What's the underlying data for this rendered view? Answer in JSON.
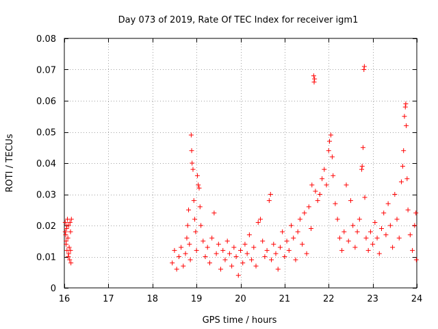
{
  "chart_data": {
    "type": "scatter",
    "title": "Day 073 of 2019, Rate Of TEC Index for receiver igm1",
    "xlabel": "GPS time / hours",
    "ylabel": "ROTI / TECUs",
    "xlim": [
      16,
      24
    ],
    "ylim": [
      0,
      0.08
    ],
    "xticks": [
      16,
      17,
      18,
      19,
      20,
      21,
      22,
      23,
      24
    ],
    "xtick_labels": [
      "16",
      "17",
      "18",
      "19",
      "20",
      "21",
      "22",
      "23",
      "24"
    ],
    "yticks": [
      0,
      0.01,
      0.02,
      0.03,
      0.04,
      0.05,
      0.06,
      0.07,
      0.08
    ],
    "ytick_labels": [
      "0",
      "0.01",
      "0.02",
      "0.03",
      "0.04",
      "0.05",
      "0.06",
      "0.07",
      "0.08"
    ],
    "grid": true,
    "marker": "+",
    "color": "#ff0000",
    "series": [
      {
        "name": "ROTI",
        "points": [
          [
            16.02,
            0.021
          ],
          [
            16.03,
            0.017
          ],
          [
            16.04,
            0.014
          ],
          [
            16.05,
            0.019
          ],
          [
            16.06,
            0.012
          ],
          [
            16.07,
            0.022
          ],
          [
            16.08,
            0.016
          ],
          [
            16.09,
            0.01
          ],
          [
            16.1,
            0.02
          ],
          [
            16.11,
            0.013
          ],
          [
            16.12,
            0.009
          ],
          [
            16.13,
            0.021
          ],
          [
            16.14,
            0.018
          ],
          [
            16.15,
            0.008
          ],
          [
            16.16,
            0.022
          ],
          [
            16.04,
            0.015
          ],
          [
            16.06,
            0.02
          ],
          [
            16.1,
            0.011
          ],
          [
            16.14,
            0.012
          ],
          [
            16.02,
            0.018
          ],
          [
            18.45,
            0.008
          ],
          [
            18.5,
            0.012
          ],
          [
            18.55,
            0.006
          ],
          [
            18.6,
            0.01
          ],
          [
            18.65,
            0.013
          ],
          [
            18.7,
            0.007
          ],
          [
            18.75,
            0.011
          ],
          [
            18.78,
            0.016
          ],
          [
            18.8,
            0.02
          ],
          [
            18.82,
            0.025
          ],
          [
            18.84,
            0.014
          ],
          [
            18.86,
            0.009
          ],
          [
            18.88,
            0.049
          ],
          [
            18.89,
            0.044
          ],
          [
            18.9,
            0.04
          ],
          [
            18.92,
            0.038
          ],
          [
            18.94,
            0.028
          ],
          [
            18.96,
            0.022
          ],
          [
            18.98,
            0.018
          ],
          [
            19.0,
            0.012
          ],
          [
            19.02,
            0.036
          ],
          [
            19.04,
            0.033
          ],
          [
            19.06,
            0.032
          ],
          [
            19.08,
            0.026
          ],
          [
            19.1,
            0.02
          ],
          [
            19.15,
            0.015
          ],
          [
            19.2,
            0.01
          ],
          [
            19.25,
            0.013
          ],
          [
            19.3,
            0.008
          ],
          [
            19.35,
            0.016
          ],
          [
            19.4,
            0.024
          ],
          [
            19.45,
            0.011
          ],
          [
            19.5,
            0.014
          ],
          [
            19.55,
            0.006
          ],
          [
            19.6,
            0.012
          ],
          [
            19.65,
            0.009
          ],
          [
            19.7,
            0.015
          ],
          [
            19.75,
            0.011
          ],
          [
            19.8,
            0.007
          ],
          [
            19.85,
            0.013
          ],
          [
            19.9,
            0.01
          ],
          [
            19.95,
            0.004
          ],
          [
            20.0,
            0.012
          ],
          [
            20.05,
            0.008
          ],
          [
            20.1,
            0.014
          ],
          [
            20.15,
            0.011
          ],
          [
            20.2,
            0.017
          ],
          [
            20.25,
            0.009
          ],
          [
            20.3,
            0.013
          ],
          [
            20.35,
            0.007
          ],
          [
            20.4,
            0.021
          ],
          [
            20.45,
            0.022
          ],
          [
            20.5,
            0.015
          ],
          [
            20.55,
            0.01
          ],
          [
            20.6,
            0.012
          ],
          [
            20.65,
            0.028
          ],
          [
            20.68,
            0.03
          ],
          [
            20.7,
            0.009
          ],
          [
            20.75,
            0.014
          ],
          [
            20.8,
            0.011
          ],
          [
            20.85,
            0.006
          ],
          [
            20.9,
            0.013
          ],
          [
            20.95,
            0.018
          ],
          [
            21.0,
            0.01
          ],
          [
            21.05,
            0.015
          ],
          [
            21.1,
            0.012
          ],
          [
            21.15,
            0.02
          ],
          [
            21.2,
            0.016
          ],
          [
            21.25,
            0.009
          ],
          [
            21.3,
            0.018
          ],
          [
            21.35,
            0.022
          ],
          [
            21.4,
            0.014
          ],
          [
            21.45,
            0.024
          ],
          [
            21.5,
            0.011
          ],
          [
            21.55,
            0.026
          ],
          [
            21.6,
            0.019
          ],
          [
            21.62,
            0.033
          ],
          [
            21.66,
            0.068
          ],
          [
            21.67,
            0.066
          ],
          [
            21.68,
            0.067
          ],
          [
            21.7,
            0.031
          ],
          [
            21.75,
            0.028
          ],
          [
            21.8,
            0.03
          ],
          [
            21.85,
            0.035
          ],
          [
            21.9,
            0.038
          ],
          [
            21.95,
            0.033
          ],
          [
            22.0,
            0.044
          ],
          [
            22.02,
            0.047
          ],
          [
            22.05,
            0.049
          ],
          [
            22.08,
            0.042
          ],
          [
            22.1,
            0.036
          ],
          [
            22.15,
            0.027
          ],
          [
            22.2,
            0.022
          ],
          [
            22.25,
            0.016
          ],
          [
            22.3,
            0.012
          ],
          [
            22.35,
            0.018
          ],
          [
            22.4,
            0.033
          ],
          [
            22.45,
            0.015
          ],
          [
            22.5,
            0.028
          ],
          [
            22.55,
            0.02
          ],
          [
            22.6,
            0.013
          ],
          [
            22.65,
            0.018
          ],
          [
            22.7,
            0.022
          ],
          [
            22.75,
            0.038
          ],
          [
            22.76,
            0.039
          ],
          [
            22.78,
            0.045
          ],
          [
            22.8,
            0.07
          ],
          [
            22.81,
            0.071
          ],
          [
            22.82,
            0.029
          ],
          [
            22.85,
            0.016
          ],
          [
            22.9,
            0.012
          ],
          [
            22.95,
            0.018
          ],
          [
            23.0,
            0.014
          ],
          [
            23.05,
            0.021
          ],
          [
            23.1,
            0.016
          ],
          [
            23.15,
            0.011
          ],
          [
            23.2,
            0.019
          ],
          [
            23.25,
            0.024
          ],
          [
            23.3,
            0.017
          ],
          [
            23.35,
            0.027
          ],
          [
            23.4,
            0.02
          ],
          [
            23.45,
            0.013
          ],
          [
            23.5,
            0.03
          ],
          [
            23.55,
            0.022
          ],
          [
            23.6,
            0.016
          ],
          [
            23.65,
            0.034
          ],
          [
            23.68,
            0.039
          ],
          [
            23.7,
            0.044
          ],
          [
            23.72,
            0.055
          ],
          [
            23.74,
            0.058
          ],
          [
            23.75,
            0.059
          ],
          [
            23.76,
            0.052
          ],
          [
            23.78,
            0.035
          ],
          [
            23.8,
            0.025
          ],
          [
            23.85,
            0.017
          ],
          [
            23.9,
            0.012
          ],
          [
            23.95,
            0.02
          ],
          [
            23.98,
            0.024
          ],
          [
            23.99,
            0.009
          ]
        ]
      }
    ]
  }
}
